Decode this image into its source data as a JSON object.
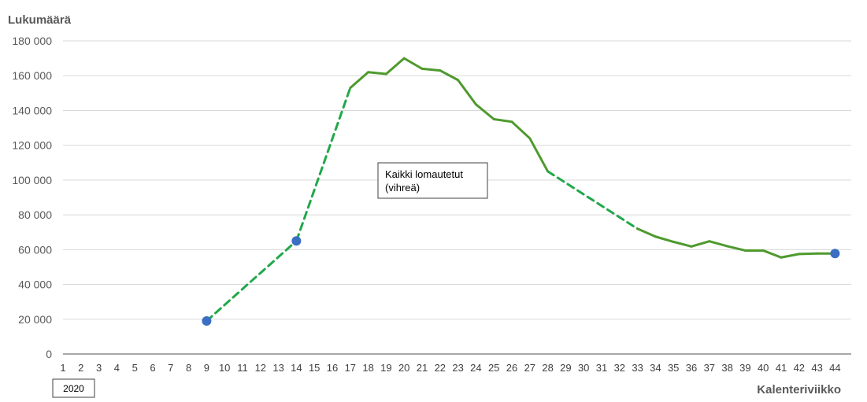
{
  "chart_data": {
    "type": "line",
    "ylabel": "Lukumäärä",
    "xlabel": "Kalenteriviikko",
    "year_label": "2020",
    "ylim": [
      0,
      180000
    ],
    "yticks": [
      0,
      20000,
      40000,
      60000,
      80000,
      100000,
      120000,
      140000,
      160000,
      180000
    ],
    "ytick_labels": [
      "0",
      "20 000",
      "40 000",
      "60 000",
      "80 000",
      "100 000",
      "120 000",
      "140 000",
      "160 000",
      "180 000"
    ],
    "x_categories": [
      "1",
      "2",
      "3",
      "4",
      "5",
      "6",
      "7",
      "8",
      "9",
      "10",
      "11",
      "12",
      "13",
      "14",
      "15",
      "16",
      "17",
      "18",
      "19",
      "20",
      "21",
      "22",
      "23",
      "24",
      "25",
      "26",
      "27",
      "28",
      "29",
      "30",
      "31",
      "32",
      "33",
      "34",
      "35",
      "36",
      "37",
      "38",
      "39",
      "40",
      "41",
      "42",
      "43",
      "44"
    ],
    "grid": true,
    "annotation": {
      "line1": "Kaikki lomautetut",
      "line2": "(vihreä)"
    },
    "series": [
      {
        "color": "#4e9a2d",
        "dashed_color": "#21a84a",
        "points": [
          {
            "x": 9,
            "y": 19000
          },
          {
            "x": 14,
            "y": 65000
          },
          {
            "x": 17,
            "y": 153000
          },
          {
            "x": 18,
            "y": 162000
          },
          {
            "x": 19,
            "y": 161000
          },
          {
            "x": 20,
            "y": 170000
          },
          {
            "x": 21,
            "y": 164000
          },
          {
            "x": 22,
            "y": 163000
          },
          {
            "x": 23,
            "y": 157500
          },
          {
            "x": 24,
            "y": 143500
          },
          {
            "x": 25,
            "y": 135000
          },
          {
            "x": 26,
            "y": 133500
          },
          {
            "x": 27,
            "y": 124000
          },
          {
            "x": 28,
            "y": 105000
          },
          {
            "x": 33,
            "y": 72000
          },
          {
            "x": 34,
            "y": 67500
          },
          {
            "x": 35,
            "y": 64500
          },
          {
            "x": 36,
            "y": 61800
          },
          {
            "x": 37,
            "y": 64800
          },
          {
            "x": 38,
            "y": 62000
          },
          {
            "x": 39,
            "y": 59500
          },
          {
            "x": 40,
            "y": 59500
          },
          {
            "x": 41,
            "y": 55500
          },
          {
            "x": 42,
            "y": 57500
          },
          {
            "x": 43,
            "y": 57800
          },
          {
            "x": 44,
            "y": 57800
          }
        ],
        "dashed_segments": [
          [
            9,
            14
          ],
          [
            14,
            17
          ],
          [
            28,
            33
          ]
        ],
        "markers": [
          {
            "x": 9,
            "y": 19000
          },
          {
            "x": 14,
            "y": 65000
          },
          {
            "x": 44,
            "y": 57800
          }
        ],
        "marker_color": "#3a6fc4"
      }
    ]
  }
}
